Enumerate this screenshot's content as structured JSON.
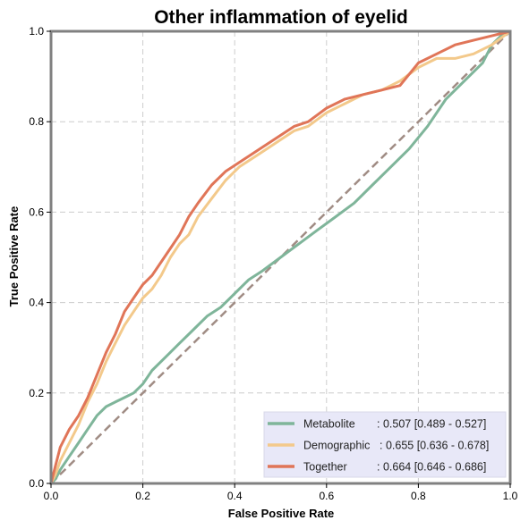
{
  "chart_data": {
    "type": "line",
    "title": "Other inflammation of eyelid",
    "xlabel": "False Positive Rate",
    "ylabel": "True Positive Rate",
    "xlim": [
      0,
      1
    ],
    "ylim": [
      0,
      1
    ],
    "x_ticks": [
      "0.0",
      "0.2",
      "0.4",
      "0.6",
      "0.8",
      "1.0"
    ],
    "y_ticks": [
      "0.0",
      "0.2",
      "0.4",
      "0.6",
      "0.8",
      "1.0"
    ],
    "grid": true,
    "legend_position": "bottom-right",
    "colors": {
      "Metabolite": "#7fb59a",
      "Demographic": "#f3c98b",
      "Together": "#e07558",
      "chance": "#a08c84",
      "legend_bg": "#e8e8f8",
      "frame": "#808080",
      "grid": "#cccccc"
    },
    "series": [
      {
        "name": "Metabolite",
        "legend_label": "Metabolite",
        "legend_value": ": 0.507 [0.489 - 0.527]",
        "x": [
          0,
          0.01,
          0.02,
          0.04,
          0.06,
          0.08,
          0.1,
          0.12,
          0.14,
          0.16,
          0.18,
          0.2,
          0.22,
          0.25,
          0.28,
          0.31,
          0.34,
          0.37,
          0.4,
          0.43,
          0.46,
          0.5,
          0.54,
          0.58,
          0.62,
          0.66,
          0.7,
          0.74,
          0.78,
          0.82,
          0.86,
          0.9,
          0.94,
          0.96,
          0.98,
          1.0
        ],
        "y": [
          0,
          0.01,
          0.03,
          0.06,
          0.09,
          0.12,
          0.15,
          0.17,
          0.18,
          0.19,
          0.2,
          0.22,
          0.25,
          0.28,
          0.31,
          0.34,
          0.37,
          0.39,
          0.42,
          0.45,
          0.47,
          0.5,
          0.53,
          0.56,
          0.59,
          0.62,
          0.66,
          0.7,
          0.74,
          0.79,
          0.85,
          0.89,
          0.93,
          0.97,
          0.99,
          1.0
        ]
      },
      {
        "name": "Demographic",
        "legend_label": "Demographic",
        "legend_value": ": 0.655 [0.636 - 0.678]",
        "x": [
          0,
          0.01,
          0.02,
          0.04,
          0.06,
          0.08,
          0.1,
          0.12,
          0.14,
          0.16,
          0.18,
          0.2,
          0.22,
          0.24,
          0.26,
          0.28,
          0.3,
          0.32,
          0.35,
          0.38,
          0.41,
          0.44,
          0.47,
          0.5,
          0.53,
          0.56,
          0.6,
          0.64,
          0.68,
          0.72,
          0.76,
          0.8,
          0.84,
          0.88,
          0.92,
          0.96,
          1.0
        ],
        "y": [
          0,
          0.02,
          0.05,
          0.09,
          0.13,
          0.18,
          0.22,
          0.27,
          0.31,
          0.35,
          0.38,
          0.41,
          0.43,
          0.46,
          0.5,
          0.53,
          0.55,
          0.59,
          0.63,
          0.67,
          0.7,
          0.72,
          0.74,
          0.76,
          0.78,
          0.79,
          0.82,
          0.84,
          0.86,
          0.87,
          0.89,
          0.92,
          0.94,
          0.94,
          0.95,
          0.97,
          1.0
        ]
      },
      {
        "name": "Together",
        "legend_label": "Together",
        "legend_value": ": 0.664 [0.646 - 0.686]",
        "x": [
          0,
          0.01,
          0.02,
          0.04,
          0.06,
          0.08,
          0.1,
          0.12,
          0.14,
          0.16,
          0.18,
          0.2,
          0.22,
          0.24,
          0.26,
          0.28,
          0.3,
          0.32,
          0.35,
          0.38,
          0.41,
          0.44,
          0.47,
          0.5,
          0.53,
          0.56,
          0.6,
          0.64,
          0.68,
          0.72,
          0.76,
          0.8,
          0.84,
          0.88,
          0.92,
          0.96,
          1.0
        ],
        "y": [
          0,
          0.04,
          0.08,
          0.12,
          0.15,
          0.19,
          0.24,
          0.29,
          0.33,
          0.38,
          0.41,
          0.44,
          0.46,
          0.49,
          0.52,
          0.55,
          0.59,
          0.62,
          0.66,
          0.69,
          0.71,
          0.73,
          0.75,
          0.77,
          0.79,
          0.8,
          0.83,
          0.85,
          0.86,
          0.87,
          0.88,
          0.93,
          0.95,
          0.97,
          0.98,
          0.99,
          1.0
        ]
      }
    ]
  }
}
